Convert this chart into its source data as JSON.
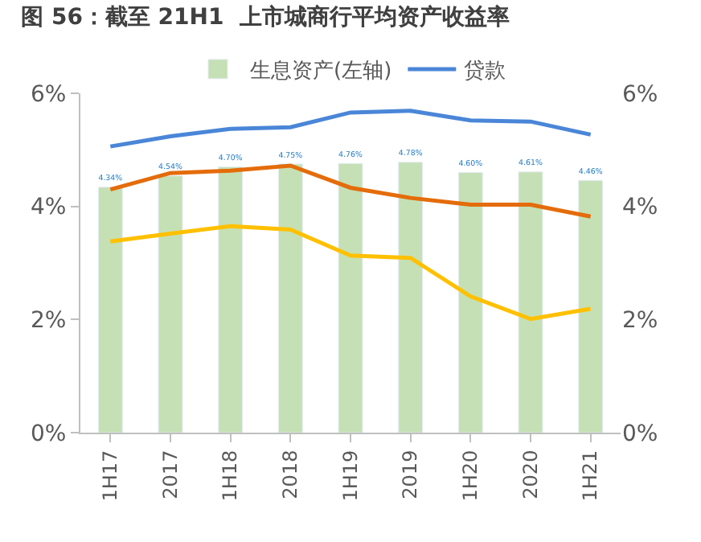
{
  "chart_data": {
    "type": "bar",
    "title": "图 56：截至 21H1  上市城商行平均资产收益率",
    "categories": [
      "1H17",
      "2017",
      "1H18",
      "2018",
      "1H19",
      "2019",
      "1H20",
      "2020",
      "1H21"
    ],
    "series": [
      {
        "name": "生息资产(左轴)",
        "color": "#c5e0b4",
        "values": [
          4.34,
          4.54,
          4.7,
          4.75,
          4.76,
          4.78,
          4.6,
          4.61,
          4.46
        ],
        "value_labels": [
          "4.34%",
          "4.54%",
          "4.70%",
          "4.75%",
          "4.76%",
          "4.78%",
          "4.60%",
          "4.61%",
          "4.46%"
        ]
      },
      {
        "name": "贷款",
        "type": "line",
        "axis": "y2",
        "color": "#4a86d8",
        "values": [
          5.06,
          5.24,
          5.37,
          5.4,
          5.66,
          5.69,
          5.52,
          5.5,
          5.27
        ]
      },
      {
        "type": "line",
        "axis": "y2",
        "color": "#e46c0a",
        "values": [
          4.3,
          4.59,
          4.63,
          4.72,
          4.33,
          4.15,
          4.03,
          4.03,
          3.82
        ]
      },
      {
        "type": "line",
        "axis": "y2",
        "color": "#ffc000",
        "values": [
          3.38,
          3.52,
          3.65,
          3.59,
          3.13,
          3.09,
          2.41,
          2.01,
          2.19
        ]
      }
    ],
    "ylim": [
      0,
      6
    ],
    "yticks": [
      {
        "value": 0,
        "label": "0%"
      },
      {
        "value": 2,
        "label": "2%"
      },
      {
        "value": 4,
        "label": "4%"
      },
      {
        "value": 6,
        "label": "6%"
      }
    ],
    "y2lim": [
      0,
      6
    ],
    "y2ticks": [
      {
        "value": 0,
        "label": "0%"
      },
      {
        "value": 2,
        "label": "2%"
      },
      {
        "value": 4,
        "label": "4%"
      },
      {
        "value": 6,
        "label": "6%"
      }
    ],
    "legend": "top",
    "marker": "none",
    "line_style": "solid"
  }
}
